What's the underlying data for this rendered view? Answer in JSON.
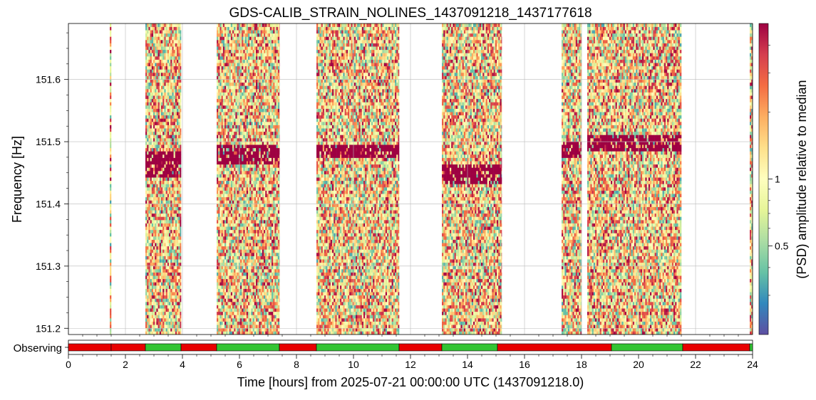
{
  "chart_data": {
    "type": "heatmap",
    "title": "GDS-CALIB_STRAIN_NOLINES_1437091218_1437177618",
    "xlabel": "Time [hours] from 2025-07-21 00:00:00 UTC (1437091218.0)",
    "ylabel": "Frequency [Hz]",
    "colorbar_label": "(PSD) amplitude relative to median",
    "colormap": "Spectral_r",
    "xlim": [
      0,
      24
    ],
    "ylim": [
      151.19,
      151.69
    ],
    "xticks": [
      0,
      2,
      4,
      6,
      8,
      10,
      12,
      14,
      16,
      18,
      20,
      22,
      24
    ],
    "xtick_labels": [
      "0",
      "2",
      "4",
      "6",
      "8",
      "10",
      "12",
      "14",
      "16",
      "18",
      "20",
      "22",
      "24"
    ],
    "yticks": [
      151.2,
      151.3,
      151.4,
      151.5,
      151.6
    ],
    "ytick_labels": [
      "151.2",
      "151.3",
      "151.4",
      "151.5",
      "151.6"
    ],
    "colorbar_ticks": [
      0.5,
      1
    ],
    "colorbar_tick_labels": [
      "0.5",
      "1"
    ],
    "colorbar_range": [
      0.2,
      5
    ],
    "colorbar_scale": "log",
    "grid": true,
    "data_segments_hours": [
      [
        1.45,
        1.5
      ],
      [
        2.7,
        3.95
      ],
      [
        5.2,
        7.4
      ],
      [
        8.7,
        11.6
      ],
      [
        13.1,
        15.2
      ],
      [
        17.3,
        18.0
      ],
      [
        18.2,
        21.5
      ],
      [
        23.9,
        24.0
      ]
    ],
    "line_tracks": [
      {
        "start": 2.7,
        "end": 3.95,
        "freq": [
          151.44,
          151.48
        ]
      },
      {
        "start": 5.2,
        "end": 7.4,
        "freq": [
          151.46,
          151.49
        ]
      },
      {
        "start": 8.7,
        "end": 11.6,
        "freq": [
          151.47,
          151.49
        ]
      },
      {
        "start": 13.1,
        "end": 15.2,
        "freq": [
          151.43,
          151.46
        ]
      },
      {
        "start": 17.3,
        "end": 18.0,
        "freq": [
          151.47,
          151.5
        ]
      },
      {
        "start": 18.2,
        "end": 21.5,
        "freq": [
          151.48,
          151.51
        ]
      }
    ],
    "state_bar": {
      "label": "Observing",
      "segments": [
        {
          "start": 0.0,
          "end": 1.5,
          "state": "off"
        },
        {
          "start": 1.5,
          "end": 2.7,
          "state": "off"
        },
        {
          "start": 2.7,
          "end": 3.95,
          "state": "on"
        },
        {
          "start": 3.95,
          "end": 5.2,
          "state": "off"
        },
        {
          "start": 5.2,
          "end": 7.4,
          "state": "on"
        },
        {
          "start": 7.4,
          "end": 8.7,
          "state": "off"
        },
        {
          "start": 8.7,
          "end": 11.6,
          "state": "on"
        },
        {
          "start": 11.6,
          "end": 13.1,
          "state": "off"
        },
        {
          "start": 13.1,
          "end": 15.05,
          "state": "on"
        },
        {
          "start": 15.05,
          "end": 19.05,
          "state": "off"
        },
        {
          "start": 19.05,
          "end": 21.55,
          "state": "on"
        },
        {
          "start": 21.55,
          "end": 23.9,
          "state": "off"
        },
        {
          "start": 23.9,
          "end": 24.0,
          "state": "on"
        }
      ],
      "on_color": "#33c433",
      "off_color": "#e80000"
    }
  }
}
